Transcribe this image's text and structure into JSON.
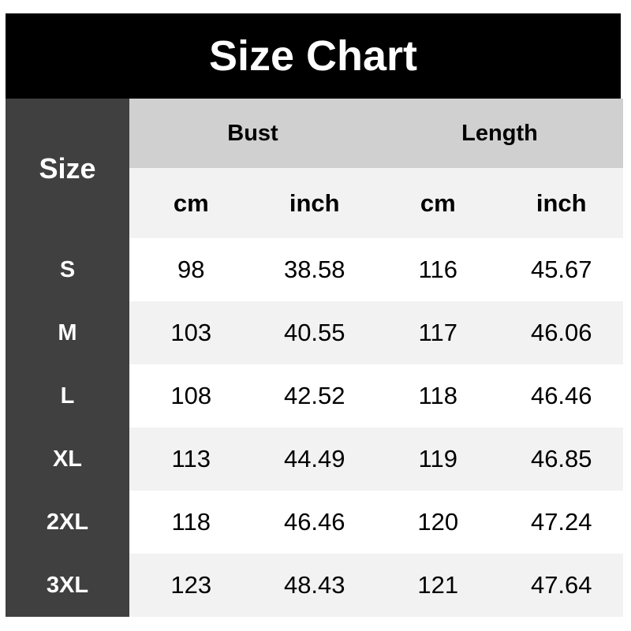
{
  "title": "Size Chart",
  "table": {
    "corner_label": "Size",
    "groups": [
      {
        "label": "Bust"
      },
      {
        "label": "Length"
      }
    ],
    "units": [
      "cm",
      "inch",
      "cm",
      "inch"
    ],
    "rows": [
      {
        "size": "S",
        "values": [
          "98",
          "38.58",
          "116",
          "45.67"
        ]
      },
      {
        "size": "M",
        "values": [
          "103",
          "40.55",
          "117",
          "46.06"
        ]
      },
      {
        "size": "L",
        "values": [
          "108",
          "42.52",
          "118",
          "46.46"
        ]
      },
      {
        "size": "XL",
        "values": [
          "113",
          "44.49",
          "119",
          "46.85"
        ]
      },
      {
        "size": "2XL",
        "values": [
          "118",
          "46.46",
          "120",
          "47.24"
        ]
      },
      {
        "size": "3XL",
        "values": [
          "123",
          "48.43",
          "121",
          "47.64"
        ]
      }
    ]
  },
  "colors": {
    "banner_bg": "#000000",
    "banner_text": "#ffffff",
    "size_col_bg": "#404040",
    "size_col_text": "#ffffff",
    "group_header_bg": "#d0d0d0",
    "unit_row_bg": "#f2f2f2",
    "row_bg": "#ffffff",
    "row_alt_bg": "#f2f2f2",
    "data_text": "#000000"
  },
  "chart_data": {
    "type": "table",
    "title": "Size Chart",
    "column_groups": [
      "Bust",
      "Length"
    ],
    "columns": [
      "Size",
      "Bust cm",
      "Bust inch",
      "Length cm",
      "Length inch"
    ],
    "rows": [
      [
        "S",
        98,
        38.58,
        116,
        45.67
      ],
      [
        "M",
        103,
        40.55,
        117,
        46.06
      ],
      [
        "L",
        108,
        42.52,
        118,
        46.46
      ],
      [
        "XL",
        113,
        44.49,
        119,
        46.85
      ],
      [
        "2XL",
        118,
        46.46,
        120,
        47.24
      ],
      [
        "3XL",
        123,
        48.43,
        121,
        47.64
      ]
    ]
  }
}
